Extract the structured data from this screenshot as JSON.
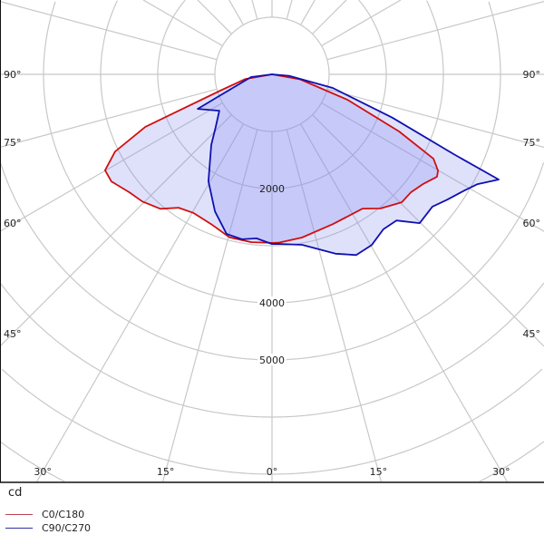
{
  "chart_data": {
    "type": "polar",
    "unit_label": "cd",
    "radial_max": 9000,
    "radial_step": 1000,
    "radial_tick_labels": [
      {
        "value": 2000,
        "text": "2000"
      },
      {
        "value": 4000,
        "text": "4000"
      },
      {
        "value": 5000,
        "text": "5000"
      }
    ],
    "angle_step_deg": 15,
    "side_angle_labels": [
      "90°",
      "75°",
      "60°",
      "45°"
    ],
    "bottom_angle_labels": [
      {
        "angle": -30,
        "text": "30°"
      },
      {
        "angle": -15,
        "text": "15°"
      },
      {
        "angle": 0,
        "text": "0°"
      },
      {
        "angle": 15,
        "text": "15°"
      },
      {
        "angle": 30,
        "text": "30°"
      }
    ],
    "grid": true,
    "legend_position": "bottom-left",
    "series": [
      {
        "name": "C0/C180",
        "color": "#d01010",
        "points_angle_cd": [
          [
            -90,
            0
          ],
          [
            -80,
            480
          ],
          [
            -72.5,
            950
          ],
          [
            -67.5,
            2400
          ],
          [
            -63.8,
            3060
          ],
          [
            -60.1,
            3370
          ],
          [
            -56.3,
            3380
          ],
          [
            -50.4,
            3240
          ],
          [
            -45.6,
            3180
          ],
          [
            -39.7,
            3060
          ],
          [
            -35,
            2850
          ],
          [
            -29.6,
            2790
          ],
          [
            -22.1,
            2830
          ],
          [
            -14.6,
            2950
          ],
          [
            -7.1,
            2960
          ],
          [
            0,
            2950
          ],
          [
            2.2,
            2950
          ],
          [
            10.4,
            2905
          ],
          [
            22.1,
            2830
          ],
          [
            34,
            2835
          ],
          [
            39,
            3020
          ],
          [
            45.4,
            3190
          ],
          [
            49.6,
            3190
          ],
          [
            54.1,
            3270
          ],
          [
            58.2,
            3400
          ],
          [
            59.9,
            3360
          ],
          [
            62.4,
            3190
          ],
          [
            65.8,
            2440
          ],
          [
            71.4,
            1390
          ],
          [
            80,
            500
          ],
          [
            90,
            0
          ]
        ]
      },
      {
        "name": "C90/C270",
        "color": "#1010b0",
        "points_angle_cd": [
          [
            -90,
            0
          ],
          [
            -82.6,
            370
          ],
          [
            -67.4,
            1030
          ],
          [
            -65.1,
            1435
          ],
          [
            -55.4,
            1120
          ],
          [
            -46.9,
            1350
          ],
          [
            -40.7,
            1630
          ],
          [
            -30.7,
            2180
          ],
          [
            -22.6,
            2600
          ],
          [
            -15.9,
            2905
          ],
          [
            -10.3,
            2935
          ],
          [
            -5.4,
            2885
          ],
          [
            0,
            2970
          ],
          [
            2.1,
            2970
          ],
          [
            10,
            3030
          ],
          [
            19.5,
            3330
          ],
          [
            25,
            3490
          ],
          [
            30.3,
            3460
          ],
          [
            35.7,
            3340
          ],
          [
            40.4,
            3360
          ],
          [
            44.8,
            3670
          ],
          [
            50.5,
            3640
          ],
          [
            54.4,
            3770
          ],
          [
            59,
            3940
          ],
          [
            61.9,
            4080
          ],
          [
            65.1,
            4375
          ],
          [
            66.3,
            3470
          ],
          [
            70.2,
            2240
          ],
          [
            77.4,
            1090
          ],
          [
            85,
            300
          ],
          [
            90,
            0
          ]
        ]
      }
    ],
    "fill_color": "#8088f0"
  }
}
